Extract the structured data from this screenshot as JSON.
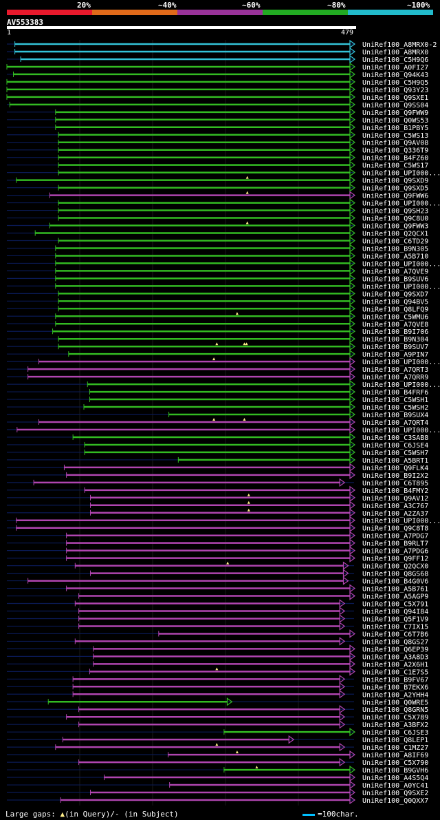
{
  "legend": {
    "segments": [
      {
        "color": "#e8192c"
      },
      {
        "color": "#e06a1a"
      },
      {
        "color": "#993399"
      },
      {
        "color": "#22aa22"
      },
      {
        "color": "#22bbcc"
      }
    ],
    "labels": [
      "20%",
      "~40%",
      "~60%",
      "~80%",
      "~100%"
    ]
  },
  "query": {
    "id": "AV553383",
    "start": "1",
    "end": "479"
  },
  "colors": {
    "cyan": "#33c3d8",
    "green": "#33bb22",
    "purple": "#b045b0",
    "dark": "#0a1a55",
    "gap": "#ffee88",
    "label": "#ffffff"
  },
  "hits": [
    {
      "name": "UniRef100_A8MRX0-2",
      "color": "cyan",
      "start": 12,
      "end": 479,
      "arrow": true
    },
    {
      "name": "UniRef100_A8MRX0",
      "color": "cyan",
      "start": 12,
      "end": 479,
      "arrow": true
    },
    {
      "name": "UniRef100_C5H9Q6",
      "color": "cyan",
      "start": 20,
      "end": 479,
      "arrow": true
    },
    {
      "name": "UniRef100_A0FI27",
      "color": "green",
      "start": 1,
      "end": 479,
      "arrow": true
    },
    {
      "name": "UniRef100_Q94K43",
      "color": "green",
      "start": 10,
      "end": 479,
      "arrow": true
    },
    {
      "name": "UniRef100_C5H9Q5",
      "color": "green",
      "start": 1,
      "end": 479,
      "arrow": true
    },
    {
      "name": "UniRef100_Q93Y23",
      "color": "green",
      "start": 1,
      "end": 479,
      "arrow": true
    },
    {
      "name": "UniRef100_Q9SXE1",
      "color": "green",
      "start": 1,
      "end": 479,
      "arrow": true
    },
    {
      "name": "UniRef100_Q9SS04",
      "color": "green",
      "start": 5,
      "end": 479,
      "arrow": true
    },
    {
      "name": "UniRef100_Q9FWW9",
      "color": "green",
      "start": 68,
      "end": 479,
      "arrow": true
    },
    {
      "name": "UniRef100_Q0WS53",
      "color": "green",
      "start": 68,
      "end": 479,
      "arrow": true
    },
    {
      "name": "UniRef100_B1PBY5",
      "color": "green",
      "start": 68,
      "end": 479,
      "arrow": true
    },
    {
      "name": "UniRef100_C5WS13",
      "color": "green",
      "start": 72,
      "end": 479,
      "arrow": true
    },
    {
      "name": "UniRef100_Q9AV08",
      "color": "green",
      "start": 72,
      "end": 479,
      "arrow": true
    },
    {
      "name": "UniRef100_Q336T9",
      "color": "green",
      "start": 72,
      "end": 479,
      "arrow": true
    },
    {
      "name": "UniRef100_B4FZ60",
      "color": "green",
      "start": 72,
      "end": 479,
      "arrow": true
    },
    {
      "name": "UniRef100_C5WS17",
      "color": "green",
      "start": 72,
      "end": 479,
      "arrow": true
    },
    {
      "name": "UniRef100_UPI000...",
      "color": "green",
      "start": 72,
      "end": 479,
      "arrow": true
    },
    {
      "name": "UniRef100_Q9SXD9",
      "color": "green",
      "start": 14,
      "end": 479,
      "arrow": true,
      "gaps": [
        332
      ]
    },
    {
      "name": "UniRef100_Q9SXD5",
      "color": "green",
      "start": 72,
      "end": 479,
      "arrow": true
    },
    {
      "name": "UniRef100_Q9FWW6",
      "color": "purple",
      "start": 60,
      "end": 479,
      "arrow": true,
      "gaps": [
        332
      ]
    },
    {
      "name": "UniRef100_UPI000...",
      "color": "green",
      "start": 72,
      "end": 479,
      "arrow": true
    },
    {
      "name": "UniRef100_Q9SH23",
      "color": "green",
      "start": 72,
      "end": 479,
      "arrow": true
    },
    {
      "name": "UniRef100_Q9C8U0",
      "color": "green",
      "start": 72,
      "end": 479,
      "arrow": true
    },
    {
      "name": "UniRef100_Q9FWW3",
      "color": "green",
      "start": 60,
      "end": 479,
      "arrow": true,
      "gaps": [
        332
      ]
    },
    {
      "name": "UniRef100_Q2QCX1",
      "color": "green",
      "start": 40,
      "end": 479,
      "arrow": true
    },
    {
      "name": "UniRef100_C6TD29",
      "color": "green",
      "start": 72,
      "end": 479,
      "arrow": true
    },
    {
      "name": "UniRef100_B9N305",
      "color": "green",
      "start": 68,
      "end": 479,
      "arrow": true
    },
    {
      "name": "UniRef100_A5B710",
      "color": "green",
      "start": 68,
      "end": 479,
      "arrow": true
    },
    {
      "name": "UniRef100_UPI000...",
      "color": "green",
      "start": 68,
      "end": 479,
      "arrow": true
    },
    {
      "name": "UniRef100_A7QVE9",
      "color": "green",
      "start": 68,
      "end": 479,
      "arrow": true
    },
    {
      "name": "UniRef100_B9SUV6",
      "color": "green",
      "start": 68,
      "end": 479,
      "arrow": true
    },
    {
      "name": "UniRef100_UPI000...",
      "color": "green",
      "start": 68,
      "end": 479,
      "arrow": true
    },
    {
      "name": "UniRef100_Q9SXD7",
      "color": "green",
      "start": 72,
      "end": 479,
      "arrow": true
    },
    {
      "name": "UniRef100_Q94BV5",
      "color": "green",
      "start": 72,
      "end": 479,
      "arrow": true
    },
    {
      "name": "UniRef100_Q8LFQ9",
      "color": "green",
      "start": 72,
      "end": 479,
      "arrow": true
    },
    {
      "name": "UniRef100_C5WMU6",
      "color": "green",
      "start": 68,
      "end": 479,
      "arrow": true,
      "gaps": [
        318
      ]
    },
    {
      "name": "UniRef100_A7QVE8",
      "color": "green",
      "start": 68,
      "end": 479,
      "arrow": true
    },
    {
      "name": "UniRef100_B9I706",
      "color": "green",
      "start": 64,
      "end": 479,
      "arrow": true
    },
    {
      "name": "UniRef100_B9N304",
      "color": "green",
      "start": 72,
      "end": 479,
      "arrow": true
    },
    {
      "name": "UniRef100_B9SUV7",
      "color": "green",
      "start": 72,
      "end": 479,
      "arrow": true,
      "gaps": [
        290,
        328,
        331
      ]
    },
    {
      "name": "UniRef100_A9PIN7",
      "color": "green",
      "start": 86,
      "end": 479,
      "arrow": true
    },
    {
      "name": "UniRef100_UPI000...",
      "color": "purple",
      "start": 45,
      "end": 479,
      "arrow": true,
      "gaps": [
        286
      ]
    },
    {
      "name": "UniRef100_A7QRT3",
      "color": "purple",
      "start": 30,
      "end": 479,
      "arrow": true
    },
    {
      "name": "UniRef100_A7QRR9",
      "color": "purple",
      "start": 30,
      "end": 479,
      "arrow": true
    },
    {
      "name": "UniRef100_UPI000...",
      "color": "green",
      "start": 112,
      "end": 479,
      "arrow": true
    },
    {
      "name": "UniRef100_B4FRF6",
      "color": "green",
      "start": 115,
      "end": 479,
      "arrow": true
    },
    {
      "name": "UniRef100_C5WSH1",
      "color": "green",
      "start": 115,
      "end": 479,
      "arrow": true
    },
    {
      "name": "UniRef100_C5WSH2",
      "color": "green",
      "start": 107,
      "end": 479,
      "arrow": true
    },
    {
      "name": "UniRef100_B9SUX4",
      "color": "green",
      "start": 224,
      "end": 479,
      "arrow": true
    },
    {
      "name": "UniRef100_A7QRT4",
      "color": "purple",
      "start": 45,
      "end": 479,
      "arrow": true,
      "gaps": [
        286,
        328
      ]
    },
    {
      "name": "UniRef100_UPI000...",
      "color": "purple",
      "start": 15,
      "end": 479,
      "arrow": true
    },
    {
      "name": "UniRef100_C3SAB8",
      "color": "green",
      "start": 92,
      "end": 479,
      "arrow": true
    },
    {
      "name": "UniRef100_C6JSE4",
      "color": "green",
      "start": 108,
      "end": 479,
      "arrow": true
    },
    {
      "name": "UniRef100_C5WSH7",
      "color": "green",
      "start": 108,
      "end": 479,
      "arrow": true
    },
    {
      "name": "UniRef100_A5BRT1",
      "color": "green",
      "start": 237,
      "end": 479,
      "arrow": true
    },
    {
      "name": "UniRef100_Q9FLK4",
      "color": "purple",
      "start": 80,
      "end": 479,
      "arrow": true
    },
    {
      "name": "UniRef100_B9I2X2",
      "color": "purple",
      "start": 83,
      "end": 479,
      "arrow": true
    },
    {
      "name": "UniRef100_C6T895",
      "color": "purple",
      "start": 38,
      "end": 465,
      "arrow": true
    },
    {
      "name": "UniRef100_B4FMY2",
      "color": "purple",
      "start": 108,
      "end": 479,
      "arrow": true
    },
    {
      "name": "UniRef100_Q9AV12",
      "color": "purple",
      "start": 116,
      "end": 479,
      "arrow": true,
      "gaps": [
        334
      ]
    },
    {
      "name": "UniRef100_A3C767",
      "color": "purple",
      "start": 116,
      "end": 479,
      "arrow": true,
      "gaps": [
        334
      ]
    },
    {
      "name": "UniRef100_A2ZA37",
      "color": "purple",
      "start": 116,
      "end": 479,
      "arrow": true,
      "gaps": [
        334
      ]
    },
    {
      "name": "UniRef100_UPI000...",
      "color": "purple",
      "start": 14,
      "end": 479,
      "arrow": true
    },
    {
      "name": "UniRef100_Q9C8T8",
      "color": "purple",
      "start": 14,
      "end": 479,
      "arrow": true
    },
    {
      "name": "UniRef100_A7PDG7",
      "color": "purple",
      "start": 83,
      "end": 479,
      "arrow": true
    },
    {
      "name": "UniRef100_B9RLT7",
      "color": "purple",
      "start": 83,
      "end": 479,
      "arrow": true
    },
    {
      "name": "UniRef100_A7PDG6",
      "color": "purple",
      "start": 83,
      "end": 479,
      "arrow": true
    },
    {
      "name": "UniRef100_Q9FF12",
      "color": "purple",
      "start": 83,
      "end": 479,
      "arrow": true
    },
    {
      "name": "UniRef100_Q2QCX0",
      "color": "purple",
      "start": 95,
      "end": 470,
      "arrow": true,
      "gaps": [
        305
      ]
    },
    {
      "name": "UniRef100_Q8GS68",
      "color": "purple",
      "start": 116,
      "end": 470,
      "arrow": true
    },
    {
      "name": "UniRef100_B4G0V6",
      "color": "purple",
      "start": 30,
      "end": 470,
      "arrow": true
    },
    {
      "name": "UniRef100_A5B761",
      "color": "purple",
      "start": 83,
      "end": 479,
      "arrow": true
    },
    {
      "name": "UniRef100_A5AGP9",
      "color": "purple",
      "start": 100,
      "end": 479,
      "arrow": true
    },
    {
      "name": "UniRef100_C5X791",
      "color": "purple",
      "start": 95,
      "end": 465,
      "arrow": true
    },
    {
      "name": "UniRef100_Q94I84",
      "color": "purple",
      "start": 100,
      "end": 465,
      "arrow": true
    },
    {
      "name": "UniRef100_Q5F1V9",
      "color": "purple",
      "start": 100,
      "end": 465,
      "arrow": true
    },
    {
      "name": "UniRef100_C7IX15",
      "color": "purple",
      "start": 100,
      "end": 465,
      "arrow": true
    },
    {
      "name": "UniRef100_C6T7B6",
      "color": "purple",
      "start": 210,
      "end": 479,
      "arrow": true
    },
    {
      "name": "UniRef100_Q8GS27",
      "color": "purple",
      "start": 95,
      "end": 465,
      "arrow": true
    },
    {
      "name": "UniRef100_Q6EP39",
      "color": "purple",
      "start": 120,
      "end": 479,
      "arrow": true
    },
    {
      "name": "UniRef100_A3A8D3",
      "color": "purple",
      "start": 120,
      "end": 479,
      "arrow": true
    },
    {
      "name": "UniRef100_A2X6H1",
      "color": "purple",
      "start": 120,
      "end": 479,
      "arrow": true
    },
    {
      "name": "UniRef100_C1E7S5",
      "color": "purple",
      "start": 115,
      "end": 479,
      "arrow": true,
      "gaps": [
        290
      ]
    },
    {
      "name": "UniRef100_B9FV67",
      "color": "purple",
      "start": 92,
      "end": 465,
      "arrow": true
    },
    {
      "name": "UniRef100_B7EKX6",
      "color": "purple",
      "start": 92,
      "end": 465,
      "arrow": true
    },
    {
      "name": "UniRef100_A2YHH4",
      "color": "purple",
      "start": 92,
      "end": 465,
      "arrow": true
    },
    {
      "name": "UniRef100_Q0WRE5",
      "color": "green",
      "start": 58,
      "end": 310,
      "arrow": true
    },
    {
      "name": "UniRef100_Q8GRN5",
      "color": "purple",
      "start": 100,
      "end": 465,
      "arrow": true
    },
    {
      "name": "UniRef100_C5X789",
      "color": "purple",
      "start": 83,
      "end": 465,
      "arrow": true
    },
    {
      "name": "UniRef100_A3BFX2",
      "color": "purple",
      "start": 100,
      "end": 465,
      "arrow": true
    },
    {
      "name": "UniRef100_C6JSE3",
      "color": "green",
      "start": 300,
      "end": 479,
      "arrow": true
    },
    {
      "name": "UniRef100_Q8LEP1",
      "color": "purple",
      "start": 78,
      "end": 395,
      "arrow": true
    },
    {
      "name": "UniRef100_C1MZ27",
      "color": "purple",
      "start": 68,
      "end": 465,
      "arrow": true,
      "gaps": [
        290
      ]
    },
    {
      "name": "UniRef100_A8IF69",
      "color": "purple",
      "start": 223,
      "end": 479,
      "arrow": true,
      "gaps": [
        318
      ]
    },
    {
      "name": "UniRef100_C5X790",
      "color": "purple",
      "start": 100,
      "end": 465,
      "arrow": true
    },
    {
      "name": "UniRef100_B9GVH6",
      "color": "green",
      "start": 300,
      "end": 479,
      "arrow": true,
      "gaps": [
        345
      ]
    },
    {
      "name": "UniRef100_A4S5Q4",
      "color": "purple",
      "start": 135,
      "end": 479,
      "arrow": true
    },
    {
      "name": "UniRef100_A0YC41",
      "color": "purple",
      "start": 225,
      "end": 479,
      "arrow": true
    },
    {
      "name": "UniRef100_Q9SXE2",
      "color": "purple",
      "start": 116,
      "end": 479,
      "arrow": true
    },
    {
      "name": "UniRef100_Q0QXX7",
      "color": "purple",
      "start": 75,
      "end": 479,
      "arrow": true
    }
  ],
  "footer": {
    "gaps_label": "Large gaps:",
    "gap_query": "(in Query)",
    "gap_subject": "/- (in Subject)",
    "scale_label": "=100char."
  }
}
